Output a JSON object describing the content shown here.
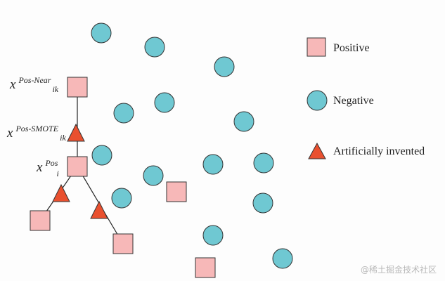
{
  "colors": {
    "positive_fill": "#f7b8b8",
    "negative_fill": "#6fc8d2",
    "synthetic_fill": "#e9502f",
    "stroke": "#333333",
    "line": "#222222"
  },
  "legend": {
    "positive": "Positive",
    "negative": "Negative",
    "synthetic": "Artificially invented"
  },
  "labels": {
    "near": {
      "base": "x",
      "sup": "Pos-Near",
      "sub": "ik"
    },
    "smote": {
      "base": "x",
      "sup": "Pos-SMOTE",
      "sub": "ik"
    },
    "pos": {
      "base": "x",
      "sup": "Pos",
      "sub": "i"
    }
  },
  "watermark": "@稀土掘金技术社区"
}
